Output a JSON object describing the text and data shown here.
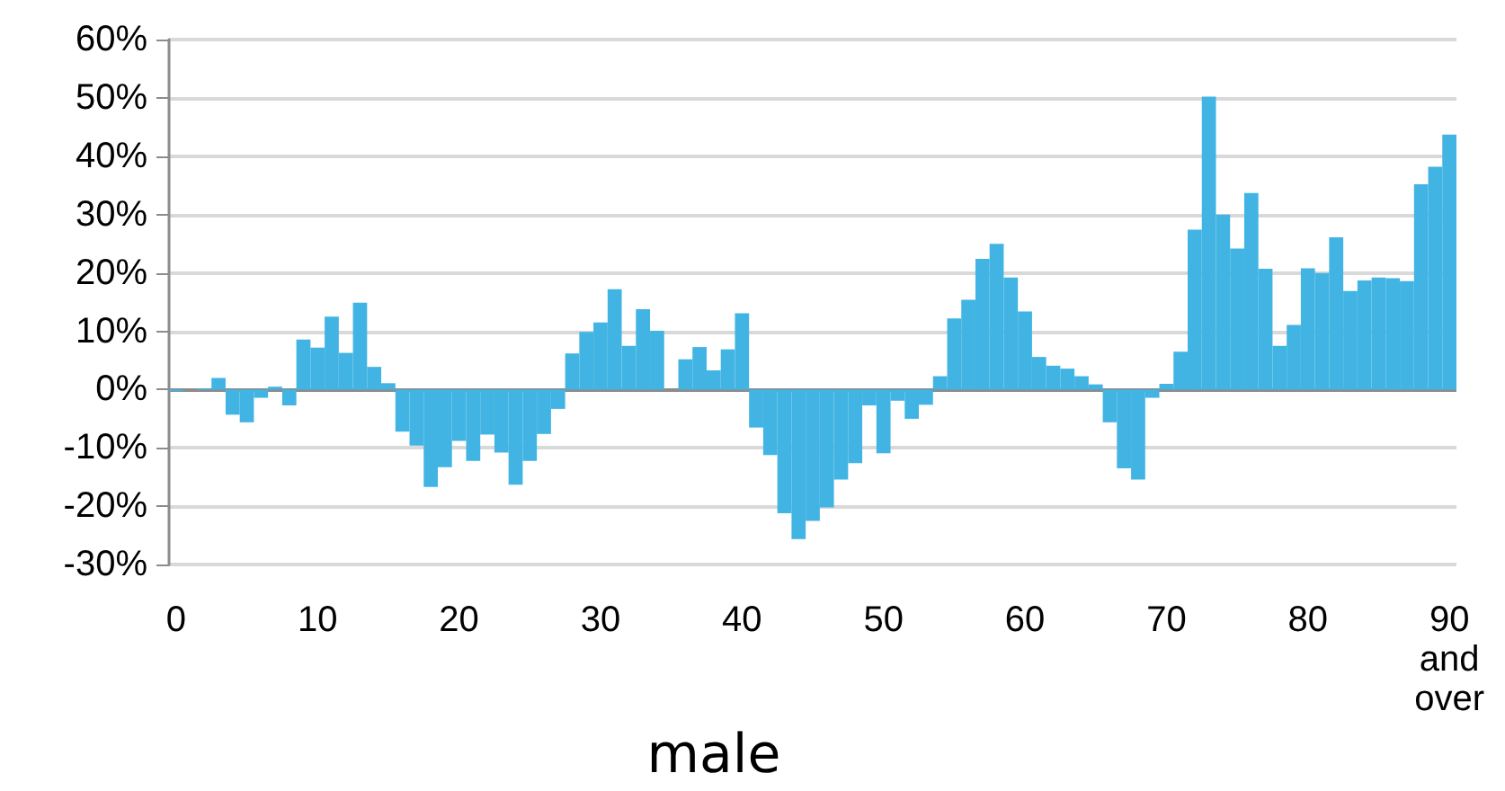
{
  "chart_data": {
    "type": "bar",
    "xlabel": "male",
    "categories": [
      "0",
      null,
      null,
      null,
      null,
      null,
      null,
      null,
      null,
      null,
      "10",
      null,
      null,
      null,
      null,
      null,
      null,
      null,
      null,
      null,
      "20",
      null,
      null,
      null,
      null,
      null,
      null,
      null,
      null,
      null,
      "30",
      null,
      null,
      null,
      null,
      null,
      null,
      null,
      null,
      null,
      "40",
      null,
      null,
      null,
      null,
      null,
      null,
      null,
      null,
      null,
      "50",
      null,
      null,
      null,
      null,
      null,
      null,
      null,
      null,
      null,
      "60",
      null,
      null,
      null,
      null,
      null,
      null,
      null,
      null,
      null,
      "70",
      null,
      null,
      null,
      null,
      null,
      null,
      null,
      null,
      null,
      "80",
      null,
      null,
      null,
      null,
      null,
      null,
      null,
      null,
      null,
      "90 and over"
    ],
    "values": [
      -0.3,
      0,
      0.2,
      2.0,
      -4.3,
      -5.6,
      -1.4,
      0.5,
      -2.7,
      8.6,
      7.2,
      12.5,
      6.3,
      14.9,
      3.9,
      1.1,
      -7.2,
      -9.6,
      -16.7,
      -13.3,
      -8.8,
      -12.2,
      -7.7,
      -10.8,
      -16.3,
      -12.2,
      -7.6,
      -3.3,
      6.2,
      9.9,
      11.5,
      17.2,
      7.5,
      13.8,
      10.1,
      0,
      5.2,
      7.3,
      3.3,
      6.9,
      13.1,
      -6.5,
      -11.2,
      -21.2,
      -25.6,
      -22.5,
      -20.2,
      -15.4,
      -12.6,
      -2.7,
      -10.9,
      -1.9,
      -5.0,
      -2.6,
      2.3,
      12.2,
      15.4,
      22.4,
      25.0,
      19.2,
      13.4,
      5.6,
      4.1,
      3.6,
      2.3,
      0.9,
      -5.6,
      -13.5,
      -15.4,
      -1.4,
      1.0,
      6.5,
      27.4,
      50.2,
      30.0,
      24.2,
      33.7,
      20.7,
      7.5,
      11.1,
      20.8,
      20.0,
      26.1,
      16.9,
      18.7,
      19.2,
      19.1,
      18.6,
      35.2,
      38.2,
      43.7
    ],
    "color": "#41b4e3",
    "ylim": [
      -30,
      60
    ],
    "yticks": [
      {
        "value": -30,
        "label": "-30%"
      },
      {
        "value": -20,
        "label": "-20%"
      },
      {
        "value": -10,
        "label": "-10%"
      },
      {
        "value": 0,
        "label": "0%"
      },
      {
        "value": 10,
        "label": "10%"
      },
      {
        "value": 20,
        "label": "20%"
      },
      {
        "value": 30,
        "label": "30%"
      },
      {
        "value": 40,
        "label": "40%"
      },
      {
        "value": 50,
        "label": "50%"
      },
      {
        "value": 60,
        "label": "60%"
      }
    ],
    "grid": "y"
  }
}
